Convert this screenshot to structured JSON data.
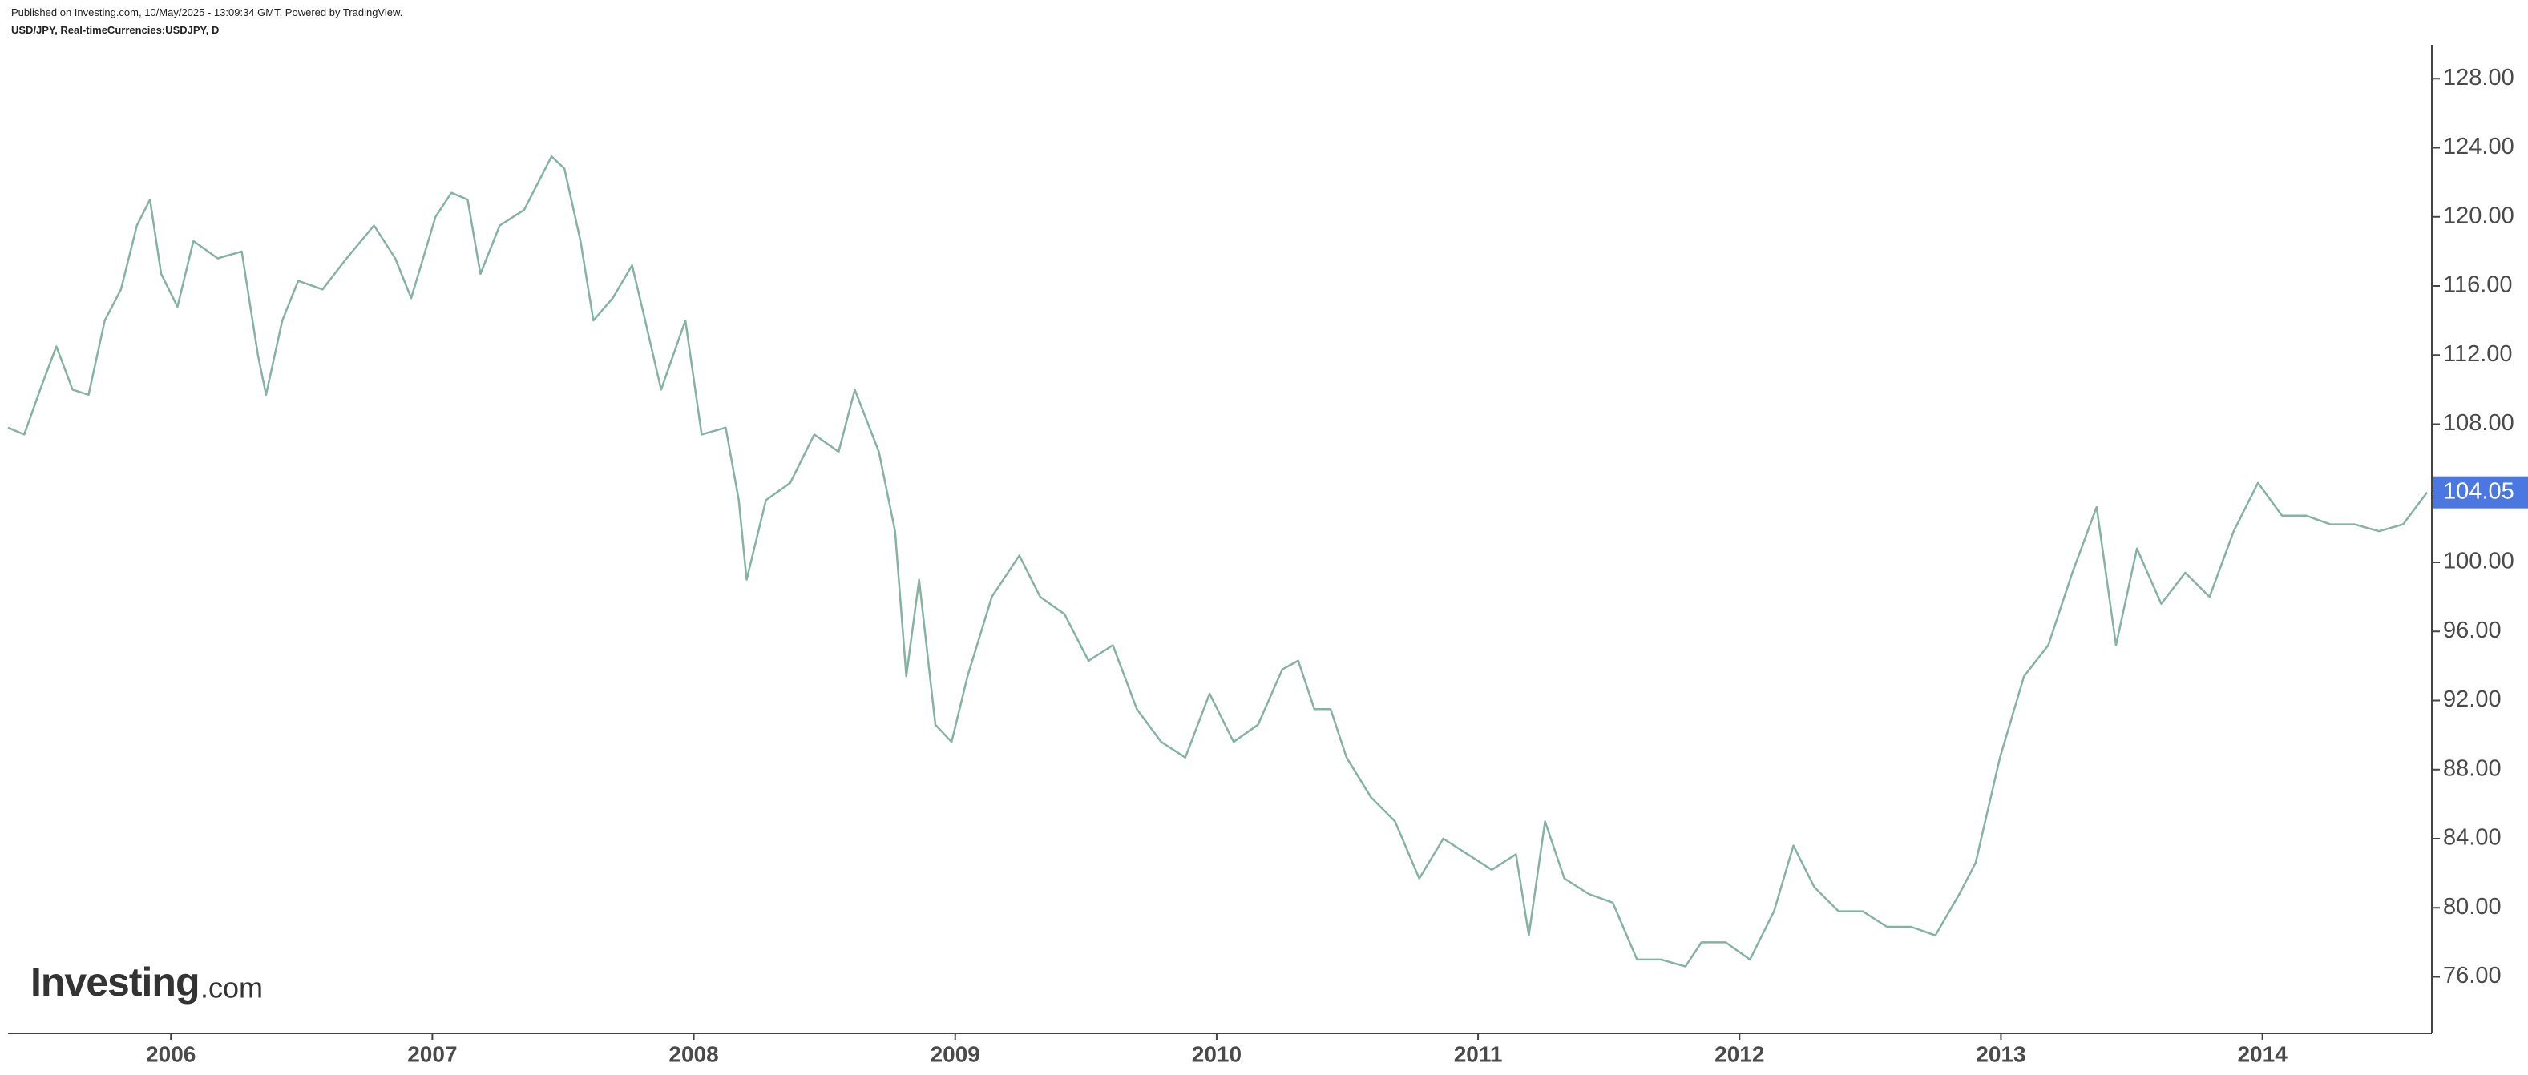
{
  "header": {
    "published": "Published on Investing.com, 10/May/2025 - 13:09:34 GMT, Powered by TradingView.",
    "symbol": "USD/JPY, Real-timeCurrencies:USDJPY, D"
  },
  "logo": {
    "brand": "Investing",
    "suffix": ".com"
  },
  "chart_data": {
    "type": "line",
    "series": [
      {
        "color": "#86b3a1",
        "x": [
          2005.377,
          2005.439,
          2005.5,
          2005.562,
          2005.624,
          2005.685,
          2005.747,
          2005.809,
          2005.87,
          2005.92,
          2005.963,
          2006.025,
          2006.086,
          2006.179,
          2006.271,
          2006.333,
          2006.364,
          2006.426,
          2006.487,
          2006.58,
          2006.672,
          2006.777,
          2006.858,
          2006.919,
          2007.012,
          2007.073,
          2007.135,
          2007.184,
          2007.258,
          2007.351,
          2007.456,
          2007.505,
          2007.567,
          2007.616,
          2007.69,
          2007.764,
          2007.814,
          2007.875,
          2007.968,
          2008.03,
          2008.122,
          2008.172,
          2008.202,
          2008.276,
          2008.369,
          2008.461,
          2008.554,
          2008.616,
          2008.708,
          2008.77,
          2008.813,
          2008.862,
          2008.924,
          2008.986,
          2009.047,
          2009.14,
          2009.245,
          2009.325,
          2009.418,
          2009.51,
          2009.603,
          2009.695,
          2009.788,
          2009.88,
          2009.973,
          2010.065,
          2010.158,
          2010.251,
          2010.312,
          2010.374,
          2010.436,
          2010.497,
          2010.59,
          2010.682,
          2010.775,
          2010.867,
          2010.96,
          2011.052,
          2011.145,
          2011.194,
          2011.256,
          2011.33,
          2011.423,
          2011.515,
          2011.608,
          2011.7,
          2011.793,
          2011.854,
          2011.947,
          2012.04,
          2012.132,
          2012.206,
          2012.286,
          2012.379,
          2012.471,
          2012.564,
          2012.656,
          2012.749,
          2012.841,
          2012.903,
          2012.996,
          2013.088,
          2013.181,
          2013.273,
          2013.366,
          2013.44,
          2013.52,
          2013.613,
          2013.705,
          2013.798,
          2013.89,
          2013.983,
          2014.075,
          2014.168,
          2014.26,
          2014.353,
          2014.446,
          2014.538,
          2014.63
        ],
        "values": [
          107.8,
          107.4,
          110,
          112.5,
          110,
          109.7,
          114,
          115.8,
          119.5,
          121,
          116.7,
          114.8,
          118.6,
          117.6,
          118,
          112,
          109.7,
          114,
          116.3,
          115.8,
          117.6,
          119.5,
          117.6,
          115.3,
          120,
          121.4,
          121,
          116.7,
          119.5,
          120.4,
          123.5,
          122.8,
          118.6,
          114,
          115.3,
          117.2,
          114,
          110,
          114,
          107.4,
          107.8,
          103.6,
          99,
          103.6,
          104.6,
          107.4,
          106.4,
          110,
          106.4,
          101.8,
          93.4,
          99,
          90.6,
          89.6,
          93.4,
          98,
          100.4,
          98,
          97,
          94.3,
          95.2,
          91.5,
          89.6,
          88.7,
          92.4,
          89.6,
          90.6,
          93.8,
          94.3,
          91.5,
          91.5,
          88.7,
          86.4,
          85,
          81.7,
          84,
          83.1,
          82.2,
          83.1,
          78.4,
          85,
          81.7,
          80.8,
          80.3,
          77,
          77,
          76.6,
          78,
          78,
          77,
          79.8,
          83.6,
          81.2,
          79.8,
          79.8,
          78.9,
          78.9,
          78.4,
          80.8,
          82.6,
          88.7,
          93.4,
          95.2,
          99.4,
          103.2,
          95.2,
          100.8,
          97.6,
          99.4,
          98,
          101.8,
          104.6,
          102.7,
          102.7,
          102.2,
          102.2,
          101.8,
          102.2,
          104.05
        ]
      }
    ],
    "last_price": 104.05,
    "last_price_color": "#4a78e0",
    "xlim": [
      2005.377,
      2014.648
    ],
    "xticks": [
      2006,
      2007,
      2008,
      2009,
      2010,
      2011,
      2012,
      2013,
      2014
    ],
    "ylim": [
      72.73,
      129.96
    ],
    "yticks": [
      {
        "value": 76,
        "label": "76.00"
      },
      {
        "value": 80,
        "label": "80.00"
      },
      {
        "value": 84,
        "label": "84.00"
      },
      {
        "value": 88,
        "label": "88.00"
      },
      {
        "value": 92,
        "label": "92.00"
      },
      {
        "value": 96,
        "label": "96.00"
      },
      {
        "value": 100,
        "label": "100.00"
      },
      {
        "value": 104,
        "label": "104.00"
      },
      {
        "value": 108,
        "label": "108.00"
      },
      {
        "value": 112,
        "label": "112.00"
      },
      {
        "value": 116,
        "label": "116.00"
      },
      {
        "value": 120,
        "label": "120.00"
      },
      {
        "value": 124,
        "label": "124.00"
      },
      {
        "value": 128,
        "label": "128.00"
      }
    ]
  }
}
